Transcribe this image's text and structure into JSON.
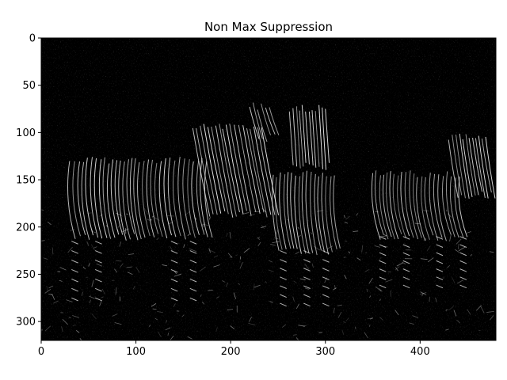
{
  "chart_data": {
    "type": "image",
    "title": "Non Max Suppression",
    "xlabel": "",
    "ylabel": "",
    "image_size": {
      "width": 480,
      "height": 320
    },
    "xlim": [
      0,
      480
    ],
    "ylim": [
      320,
      0
    ],
    "x_ticks": [
      0,
      100,
      200,
      300,
      400
    ],
    "y_ticks": [
      0,
      50,
      100,
      150,
      200,
      250,
      300
    ],
    "colormap": "gray",
    "background_color": "#000000",
    "content": "edge map of three zebras standing in grass",
    "subjects": [
      "zebra",
      "zebra",
      "zebra"
    ],
    "grid": false,
    "legend": "none"
  }
}
